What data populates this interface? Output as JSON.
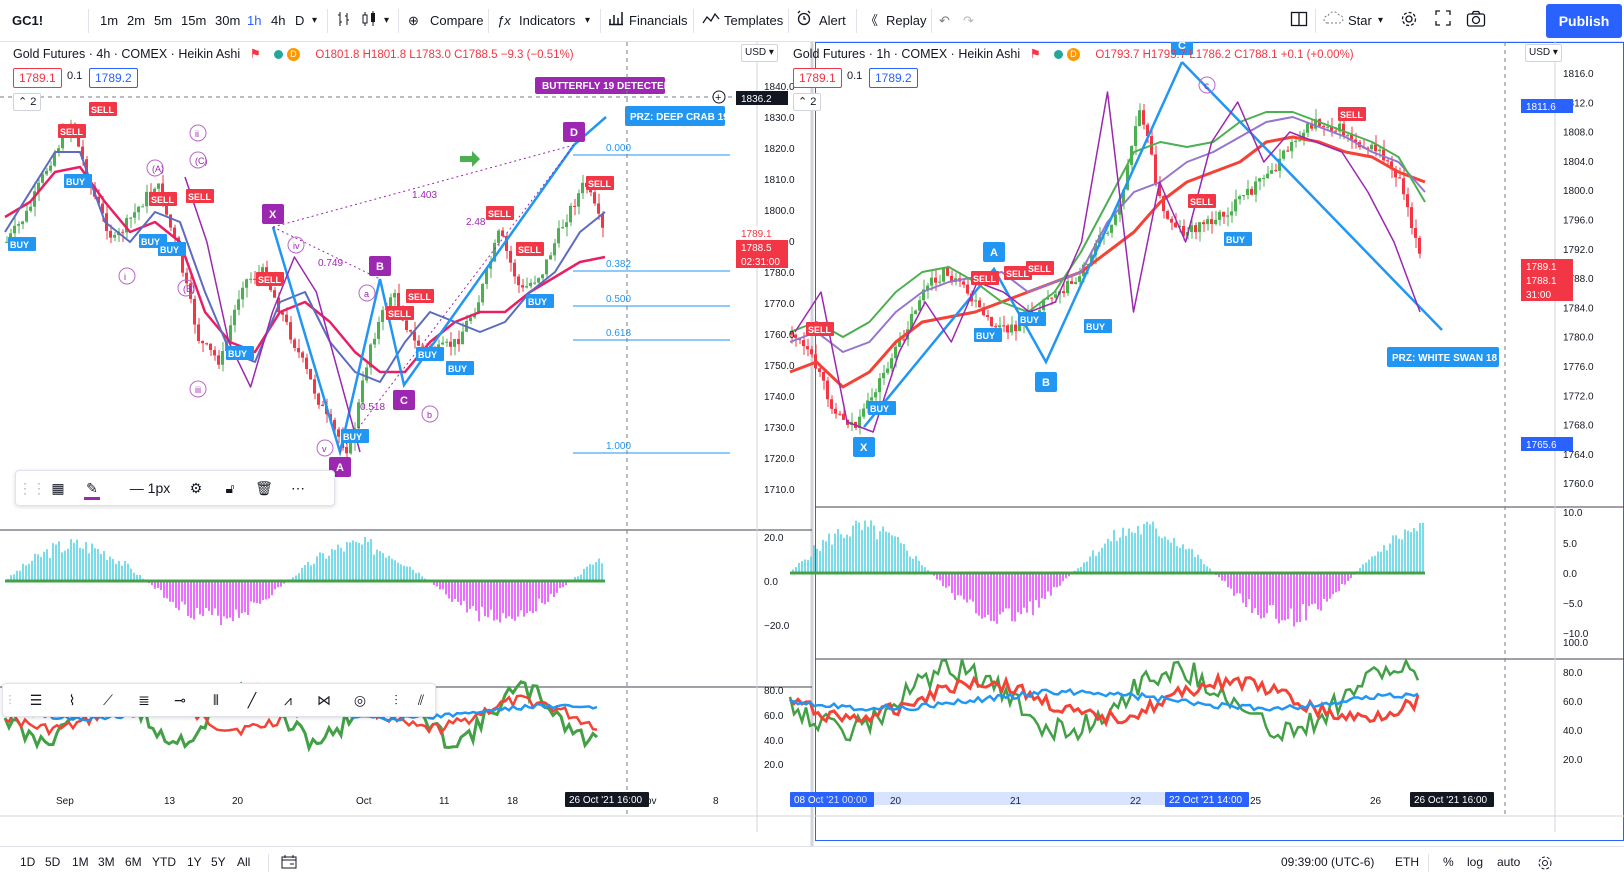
{
  "toolbar": {
    "symbol": "GC1!",
    "intervals": [
      "1m",
      "2m",
      "5m",
      "15m",
      "30m",
      "1h",
      "4h",
      "D"
    ],
    "compare": "Compare",
    "indicators": "Indicators",
    "financials": "Financials",
    "templates": "Templates",
    "alert": "Alert",
    "replay": "Replay",
    "star": "Star",
    "publish": "Publish"
  },
  "left": {
    "legend": {
      "title": "Gold Futures · 4h · COMEX · Heikin Ashi",
      "ohlc": "O1801.8 H1801.8 L1783.0 C1788.5 −9.3 (−0.51%)",
      "box_left": "1789.1",
      "spread": "0.1",
      "box_right": "1789.2",
      "collapse": "2"
    },
    "currency": "USD",
    "price_ticks": [
      "1840.0",
      "1830.0",
      "1820.0",
      "1810.0",
      "1800.0",
      "1790.0",
      "1780.0",
      "1770.0",
      "1760.0",
      "1750.0",
      "1740.0",
      "1730.0",
      "1720.0",
      "1710.0"
    ],
    "osc_ticks": [
      "20.0",
      "0.0",
      "−20.0"
    ],
    "rsi_ticks": [
      "80.0",
      "60.0",
      "40.0",
      "20.0"
    ],
    "time_ticks": [
      "Sep",
      "13",
      "20",
      "Oct",
      "11",
      "18",
      "ov",
      "8"
    ],
    "crosshair_date": "26 Oct '21",
    "crosshair_time": "16:00",
    "price_labels": {
      "crosshair": "1836.2",
      "last1": "1789.1",
      "last2": "1788.5",
      "countdown": "02:31:00"
    },
    "pattern_banner": "BUTTERFLY 19 DETECTED",
    "prz": "PRZ: DEEP CRAB 19",
    "fib": [
      "0.000",
      "0.382",
      "0.500",
      "0.618",
      "1.000"
    ],
    "ratios": [
      "1.403",
      "0.749",
      "2.48",
      "0.518"
    ],
    "points": [
      "X",
      "A",
      "B",
      "C",
      "D"
    ],
    "waves": [
      "ii",
      "i",
      "iii",
      "(A)",
      "(C)",
      "(B)",
      "iv",
      "v",
      "a",
      "b"
    ],
    "signals": [
      "SELL",
      "BUY"
    ]
  },
  "right": {
    "legend": {
      "title": "Gold Futures · 1h · COMEX · Heikin Ashi",
      "ohlc": "O1793.7 H1793.7 L1786.2 C1788.1 +0.1 (+0.00%)",
      "box_left": "1789.1",
      "spread": "0.1",
      "box_right": "1789.2",
      "collapse": "2"
    },
    "currency": "USD",
    "price_ticks": [
      "1816.0",
      "1812.0",
      "1808.0",
      "1804.0",
      "1800.0",
      "1796.0",
      "1792.0",
      "1788.0",
      "1784.0",
      "1780.0",
      "1776.0",
      "1772.0",
      "1768.0",
      "1764.0",
      "1760.0"
    ],
    "osc_ticks": [
      "10.0",
      "5.0",
      "0.0",
      "−5.0",
      "−10.0"
    ],
    "rsi_ticks": [
      "100.0",
      "80.0",
      "60.0",
      "40.0",
      "20.0"
    ],
    "time_ticks": [
      "20",
      "21",
      "22",
      "25",
      "26"
    ],
    "date_start": "08 Oct '21",
    "time_start": "00:00",
    "date_mid": "22 Oct '21",
    "time_mid": "14:00",
    "crosshair_date": "26 Oct '21",
    "crosshair_time": "16:00",
    "price_labels": {
      "high": "1811.6",
      "last1": "1789.1",
      "last2": "1788.1",
      "countdown": "31:00",
      "low": "1765.6"
    },
    "prz": "PRZ: WHITE SWAN 18",
    "points": [
      "X",
      "A",
      "B",
      "C"
    ],
    "wave": "c"
  },
  "drawing_toolbar": {
    "width_label": "1px"
  },
  "bottom": {
    "ranges": [
      "1D",
      "5D",
      "1M",
      "3M",
      "6M",
      "YTD",
      "1Y",
      "5Y",
      "All"
    ],
    "clock": "09:39:00 (UTC-6)",
    "session": "ETH",
    "percent": "%",
    "log": "log",
    "auto": "auto"
  },
  "colors": {
    "accent": "#2962ff",
    "up": "#26a69a",
    "down": "#f23645",
    "purple": "#9c27b0",
    "pattern_blue": "#2196f3"
  }
}
